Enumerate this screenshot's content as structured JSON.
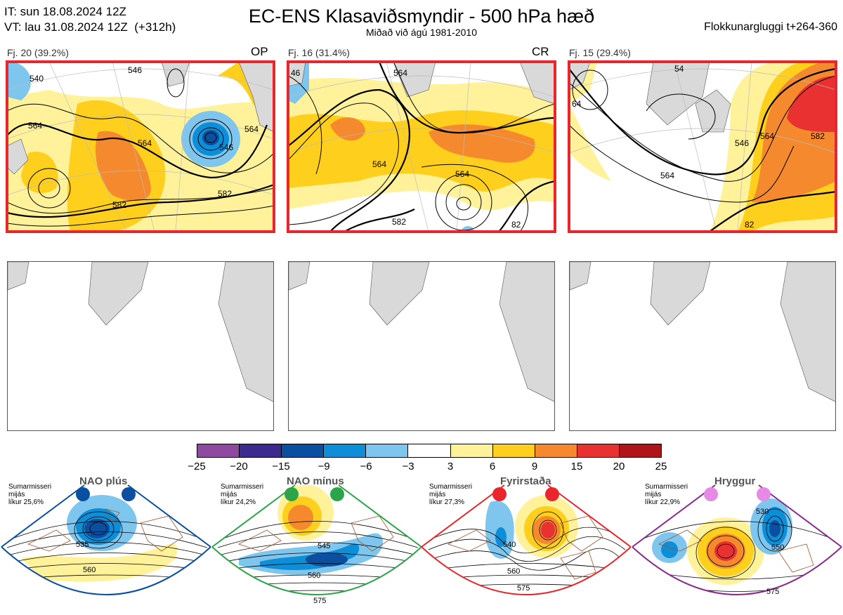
{
  "header": {
    "it_line": "IT: sun 18.08.2024 12Z",
    "vt_line": "VT: lau 31.08.2024 12Z  (+312h)",
    "title": "EC-ENS Klasaviðsmyndir - 500 hPa hæð",
    "subtitle": "Miðað við ágú 1981-2010",
    "window": "Flokkunargluggi t+264-360"
  },
  "clusters": [
    {
      "label": "Fj. 20 (39.2%)",
      "tag": "OP",
      "contours": [
        "540",
        "546",
        "564",
        "564",
        "564",
        "546",
        "582",
        "582"
      ],
      "frame_color": "#e8262b"
    },
    {
      "label": "Fj. 16 (31.4%)",
      "tag": "CR",
      "contours": [
        "46",
        "564",
        "564",
        "564",
        "582",
        "82"
      ],
      "frame_color": "#e8262b"
    },
    {
      "label": "Fj. 15 (29.4%)",
      "tag": "",
      "contours": [
        "54",
        "64",
        "546",
        "564",
        "564",
        "582",
        "82"
      ],
      "frame_color": "#e8262b"
    }
  ],
  "colorbar": {
    "ticks": [
      "−25",
      "−20",
      "−15",
      "−9",
      "−6",
      "−3",
      "3",
      "6",
      "9",
      "15",
      "20",
      "25"
    ],
    "colors": [
      "#8e4a9e",
      "#3d2a8f",
      "#0b4fa0",
      "#0d8ed6",
      "#7fc6ee",
      "#ffffff",
      "#fff29a",
      "#ffcf1e",
      "#f5892d",
      "#ea3131",
      "#b01418"
    ]
  },
  "regimes": [
    {
      "meta": [
        "Sumarmisseri",
        "mijás",
        "líkur 25,6%"
      ],
      "name": "NAO plús",
      "color": "#0b4fa0",
      "contours": [
        "535",
        "560"
      ],
      "dot_colors": [
        "#0b4fa0",
        "#0b4fa0"
      ]
    },
    {
      "meta": [
        "Sumarmisseri",
        "mijás",
        "líkur 24,2%"
      ],
      "name": "NAO mínus",
      "color": "#2ca44a",
      "contours": [
        "545",
        "560",
        "575"
      ],
      "dot_colors": [
        "#2ca44a",
        "#2ca44a"
      ]
    },
    {
      "meta": [
        "Sumarmisseri",
        "mijás",
        "líkur 27,3%"
      ],
      "name": "Fyrirstaða",
      "color": "#e8262b",
      "contours": [
        "540",
        "560",
        "575"
      ],
      "dot_colors": [
        "#e8262b",
        "#e8262b"
      ]
    },
    {
      "meta": [
        "Sumarmisseri",
        "mijás",
        "líkur 22,9%"
      ],
      "name": "Hryggur",
      "color": "#8a2a8f",
      "contours": [
        "530",
        "550",
        "575"
      ],
      "dot_colors": [
        "#e68ae6",
        "#e68ae6"
      ]
    }
  ]
}
